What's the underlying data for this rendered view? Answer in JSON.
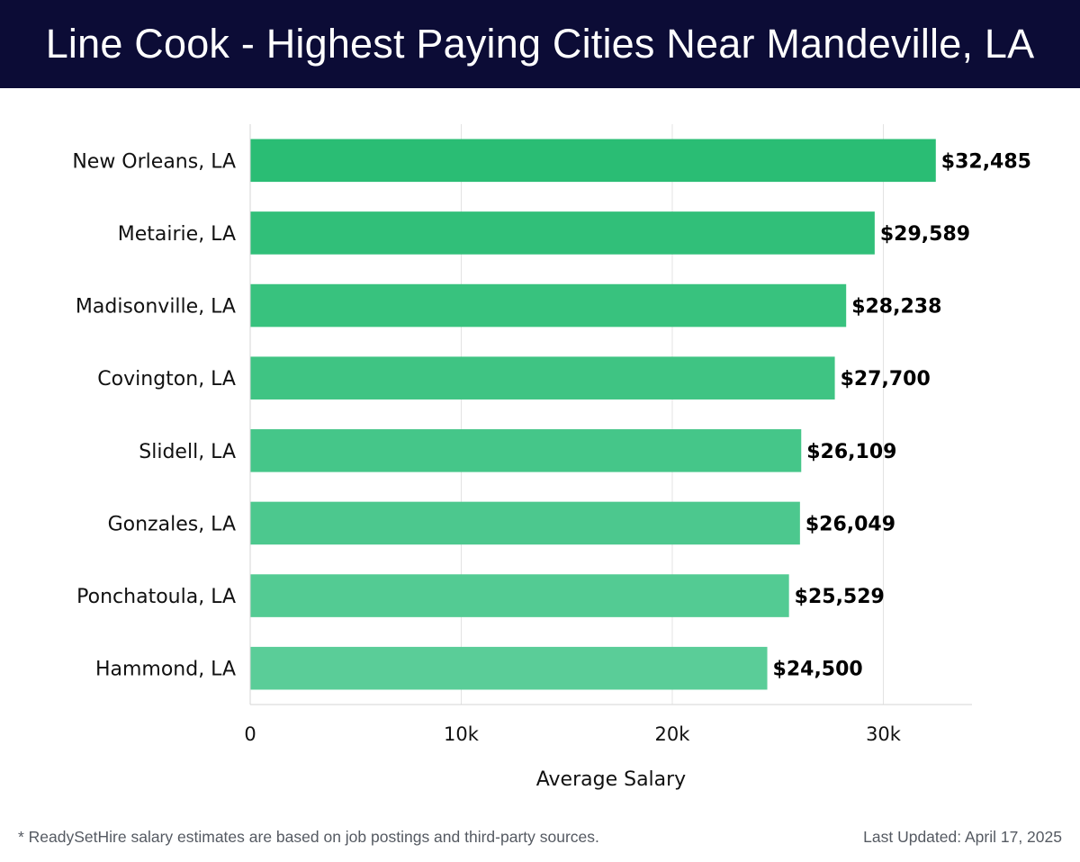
{
  "header": {
    "title": "Line Cook - Highest Paying Cities Near Mandeville, LA"
  },
  "footer": {
    "note": "* ReadySetHire salary estimates are based on job postings and third-party sources.",
    "updated": "Last Updated: April 17, 2025"
  },
  "chart_data": {
    "type": "bar",
    "orientation": "horizontal",
    "title": "Line Cook - Highest Paying Cities Near Mandeville, LA",
    "xlabel": "Average Salary",
    "ylabel": "",
    "categories": [
      "New Orleans, LA",
      "Metairie, LA",
      "Madisonville, LA",
      "Covington, LA",
      "Slidell, LA",
      "Gonzales, LA",
      "Ponchatoula, LA",
      "Hammond, LA"
    ],
    "values": [
      32485,
      29589,
      28238,
      27700,
      26109,
      26049,
      25529,
      24500
    ],
    "value_labels": [
      "$32,485",
      "$29,589",
      "$28,238",
      "$27,700",
      "$26,109",
      "$26,049",
      "$25,529",
      "$24,500"
    ],
    "xlim": [
      0,
      34200
    ],
    "xticks": [
      0,
      10000,
      20000,
      30000
    ],
    "xtick_labels": [
      "0",
      "10k",
      "20k",
      "30k"
    ],
    "grid": true,
    "legend": "none",
    "colors": {
      "bar_top": "#2abd74",
      "bar_bottom": "#5acd98"
    }
  }
}
